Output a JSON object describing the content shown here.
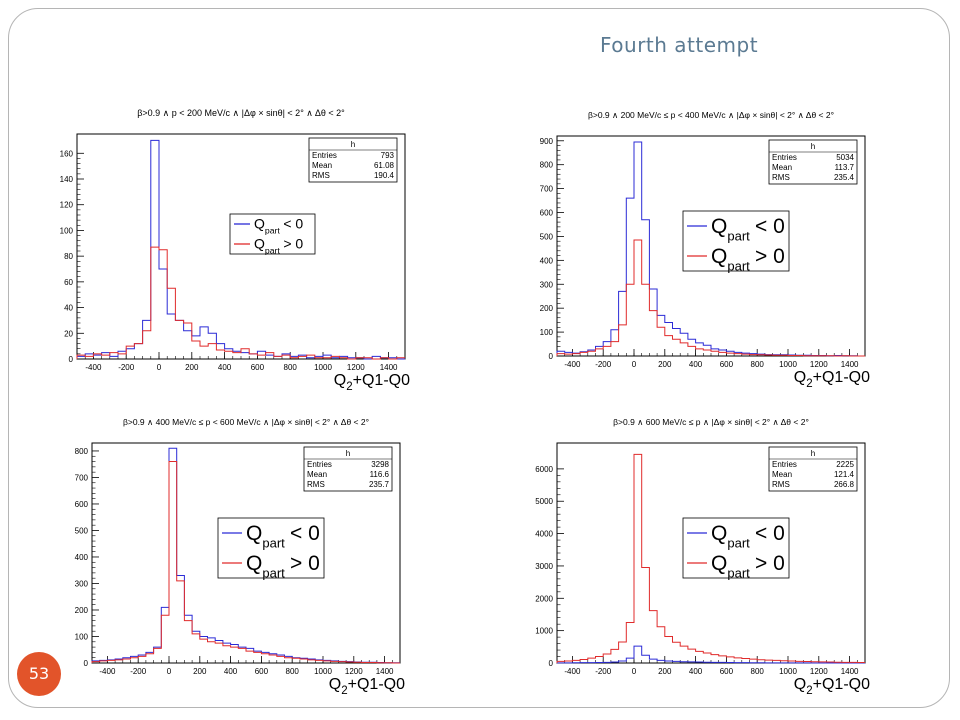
{
  "slide": {
    "title": "Fourth attempt",
    "page_number": "53"
  },
  "colors": {
    "negative": "#2b2bd6",
    "positive": "#e02b2b",
    "badge": "#e2542a",
    "title": "#5b7a92"
  },
  "chart_data": [
    {
      "type": "histogram",
      "title": "β>0.9 ∧ p < 200 MeV/c ∧ |Δφ × sinθ| < 2° ∧ Δθ < 2°",
      "xlabel": "Q2+Q1-Q0",
      "xlim": [
        -500,
        1500
      ],
      "ylim": [
        0,
        175
      ],
      "yticks": [
        0,
        20,
        40,
        60,
        80,
        100,
        120,
        140,
        160
      ],
      "xticks": [
        -400,
        -200,
        0,
        200,
        400,
        600,
        800,
        1000,
        1200,
        1400
      ],
      "stats": {
        "name": "h",
        "entries": "793",
        "mean": "61.08",
        "rms": "190.4"
      },
      "legend": [
        "Q_part < 0",
        "Q_part > 0"
      ],
      "bins": [
        -475,
        -425,
        -375,
        -325,
        -275,
        -225,
        -175,
        -125,
        -75,
        -25,
        25,
        75,
        125,
        175,
        225,
        275,
        325,
        375,
        425,
        475,
        525,
        575,
        625,
        675,
        725,
        775,
        825,
        875,
        925,
        975,
        1025,
        1075,
        1125,
        1175,
        1225,
        1275,
        1325,
        1375,
        1425,
        1475
      ],
      "series": [
        {
          "name": "Q_part < 0",
          "values": [
            2,
            4,
            3,
            5,
            2,
            6,
            8,
            12,
            30,
            170,
            70,
            35,
            30,
            22,
            18,
            25,
            20,
            12,
            8,
            6,
            5,
            4,
            6,
            3,
            2,
            4,
            2,
            3,
            1,
            2,
            3,
            1,
            2,
            1,
            1,
            0,
            2,
            1,
            1,
            0
          ]
        },
        {
          "name": "Q_part > 0",
          "values": [
            3,
            2,
            4,
            3,
            5,
            4,
            10,
            12,
            22,
            87,
            85,
            55,
            30,
            28,
            14,
            10,
            12,
            7,
            6,
            5,
            8,
            4,
            3,
            5,
            2,
            3,
            1,
            2,
            3,
            1,
            1,
            2,
            1,
            0,
            1,
            1,
            0,
            1,
            0,
            1
          ]
        }
      ]
    },
    {
      "type": "histogram",
      "title": "β>0.9 ∧ 200 MeV/c ≤ p < 400 MeV/c ∧ |Δφ × sinθ| < 2° ∧ Δθ < 2°",
      "xlabel": "Q2+Q1-Q0",
      "xlim": [
        -500,
        1500
      ],
      "ylim": [
        0,
        920
      ],
      "yticks": [
        0,
        100,
        200,
        300,
        400,
        500,
        600,
        700,
        800,
        900
      ],
      "xticks": [
        -400,
        -200,
        0,
        200,
        400,
        600,
        800,
        1000,
        1200,
        1400
      ],
      "stats": {
        "name": "h",
        "entries": "5034",
        "mean": "113.7",
        "rms": "235.4"
      },
      "legend": [
        "Q_part < 0",
        "Q_part > 0"
      ],
      "bins": [
        -475,
        -425,
        -375,
        -325,
        -275,
        -225,
        -175,
        -125,
        -75,
        -25,
        25,
        75,
        125,
        175,
        225,
        275,
        325,
        375,
        425,
        475,
        525,
        575,
        625,
        675,
        725,
        775,
        825,
        875,
        925,
        975,
        1025,
        1075,
        1125,
        1175,
        1225,
        1275,
        1325,
        1375,
        1425,
        1475
      ],
      "series": [
        {
          "name": "Q_part < 0",
          "values": [
            20,
            15,
            12,
            18,
            25,
            40,
            60,
            110,
            270,
            660,
            895,
            570,
            280,
            170,
            140,
            115,
            95,
            70,
            55,
            45,
            30,
            25,
            20,
            15,
            12,
            10,
            8,
            6,
            5,
            5,
            4,
            3,
            3,
            2,
            2,
            1,
            2,
            1,
            1,
            0
          ]
        },
        {
          "name": "Q_part > 0",
          "values": [
            10,
            8,
            10,
            15,
            20,
            30,
            40,
            60,
            130,
            300,
            485,
            300,
            190,
            120,
            85,
            70,
            55,
            40,
            30,
            25,
            20,
            15,
            12,
            10,
            8,
            6,
            5,
            4,
            3,
            3,
            2,
            2,
            1,
            1,
            1,
            1,
            0,
            1,
            0,
            0
          ]
        }
      ]
    },
    {
      "type": "histogram",
      "title": "β>0.9 ∧ 400 MeV/c ≤ p < 600 MeV/c ∧ |Δφ × sinθ| < 2° ∧ Δθ < 2°",
      "xlabel": "Q2+Q1-Q0",
      "xlim": [
        -500,
        1500
      ],
      "ylim": [
        0,
        830
      ],
      "yticks": [
        0,
        100,
        200,
        300,
        400,
        500,
        600,
        700,
        800
      ],
      "xticks": [
        -400,
        -200,
        0,
        200,
        400,
        600,
        800,
        1000,
        1200,
        1400
      ],
      "stats": {
        "name": "h",
        "entries": "3298",
        "mean": "116.6",
        "rms": "235.7"
      },
      "legend": [
        "Q_part < 0",
        "Q_part > 0"
      ],
      "bins": [
        -475,
        -425,
        -375,
        -325,
        -275,
        -225,
        -175,
        -125,
        -75,
        -25,
        25,
        75,
        125,
        175,
        225,
        275,
        325,
        375,
        425,
        475,
        525,
        575,
        625,
        675,
        725,
        775,
        825,
        875,
        925,
        975,
        1025,
        1075,
        1125,
        1175,
        1225,
        1275,
        1325,
        1375,
        1425,
        1475
      ],
      "series": [
        {
          "name": "Q_part < 0",
          "values": [
            8,
            10,
            12,
            15,
            20,
            25,
            30,
            40,
            60,
            210,
            810,
            330,
            180,
            120,
            100,
            95,
            85,
            75,
            70,
            60,
            55,
            45,
            40,
            35,
            30,
            25,
            20,
            18,
            15,
            12,
            10,
            8,
            6,
            5,
            4,
            3,
            3,
            2,
            1,
            1
          ]
        },
        {
          "name": "Q_part > 0",
          "values": [
            5,
            8,
            10,
            12,
            15,
            20,
            25,
            35,
            55,
            180,
            760,
            310,
            160,
            110,
            90,
            80,
            75,
            65,
            60,
            55,
            45,
            40,
            35,
            30,
            25,
            20,
            18,
            15,
            12,
            10,
            8,
            6,
            5,
            4,
            3,
            2,
            2,
            1,
            1,
            0
          ]
        }
      ]
    },
    {
      "type": "histogram",
      "title": "β>0.9 ∧ 600 MeV/c ≤ p ∧ |Δφ × sinθ| < 2° ∧ Δθ < 2°",
      "xlabel": "Q2+Q1-Q0",
      "xlim": [
        -500,
        1500
      ],
      "ylim": [
        0,
        6800
      ],
      "yticks": [
        0,
        1000,
        2000,
        3000,
        4000,
        5000,
        6000
      ],
      "xticks": [
        -400,
        -200,
        0,
        200,
        400,
        600,
        800,
        1000,
        1200,
        1400
      ],
      "stats": {
        "name": "h",
        "entries": "2225",
        "mean": "121.4",
        "rms": "266.8"
      },
      "legend": [
        "Q_part < 0",
        "Q_part > 0"
      ],
      "bins": [
        -475,
        -425,
        -375,
        -325,
        -275,
        -225,
        -175,
        -125,
        -75,
        -25,
        25,
        75,
        125,
        175,
        225,
        275,
        325,
        375,
        425,
        475,
        525,
        575,
        625,
        675,
        725,
        775,
        825,
        875,
        925,
        975,
        1025,
        1075,
        1125,
        1175,
        1225,
        1275,
        1325,
        1375,
        1425,
        1475
      ],
      "series": [
        {
          "name": "Q_part < 0",
          "values": [
            5,
            5,
            8,
            10,
            10,
            15,
            20,
            30,
            60,
            150,
            520,
            240,
            120,
            80,
            60,
            50,
            40,
            35,
            30,
            25,
            20,
            18,
            15,
            12,
            10,
            8,
            6,
            5,
            4,
            3,
            3,
            2,
            2,
            1,
            1,
            1,
            0,
            1,
            0,
            0
          ]
        },
        {
          "name": "Q_part > 0",
          "values": [
            50,
            60,
            80,
            110,
            150,
            200,
            280,
            420,
            650,
            1250,
            6450,
            2950,
            1620,
            1120,
            820,
            640,
            520,
            430,
            360,
            310,
            260,
            220,
            190,
            160,
            140,
            120,
            100,
            90,
            80,
            70,
            60,
            50,
            45,
            40,
            35,
            30,
            25,
            20,
            18,
            15
          ]
        }
      ]
    }
  ]
}
